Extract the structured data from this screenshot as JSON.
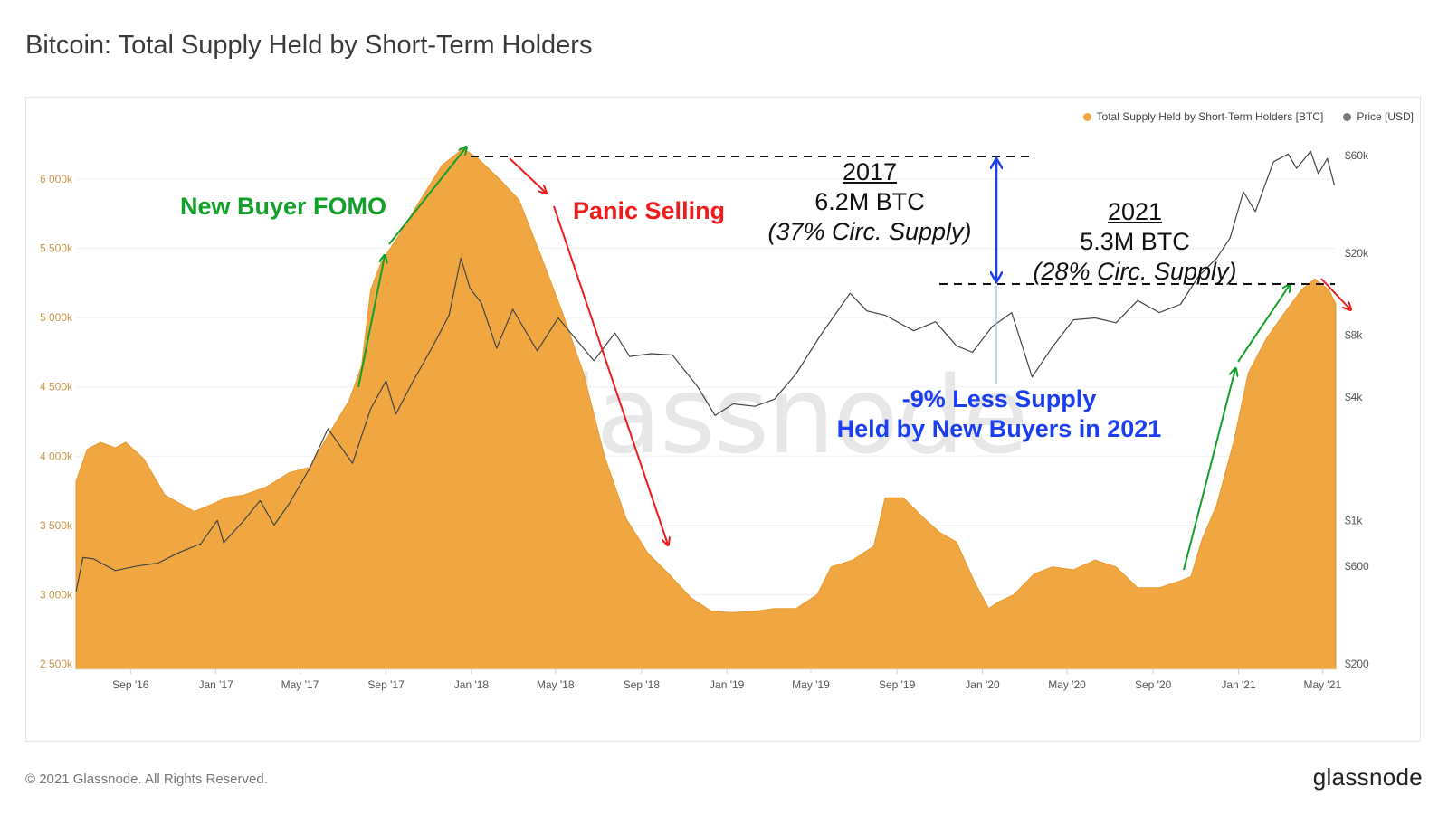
{
  "title": "Bitcoin: Total Supply Held by Short-Term Holders",
  "legend": {
    "supply_label": "Total Supply Held by Short-Term Holders [BTC]",
    "price_label": "Price [USD]"
  },
  "colors": {
    "supply": "#f0a742",
    "price": "#777777",
    "green": "#12a02a",
    "red": "#ee1c1c",
    "blue": "#1a3ef0"
  },
  "annotations": {
    "fomo": "New Buyer FOMO",
    "panic": "Panic Selling",
    "y2017": "2017",
    "btc2017": "6.2M BTC",
    "circ2017": "(37% Circ. Supply)",
    "y2021": "2021",
    "btc2021": "5.3M BTC",
    "circ2021": "(28% Circ. Supply)",
    "less_line1": "-9% Less Supply",
    "less_line2": "Held by New Buyers in 2021"
  },
  "watermark": "glassnode",
  "footer": {
    "copyright": "© 2021 Glassnode. All Rights Reserved.",
    "logo": "glassnode"
  },
  "chart_data": {
    "type": "area",
    "x_tick_labels": [
      "Sep '16",
      "Jan '17",
      "May '17",
      "Sep '17",
      "Jan '18",
      "May '18",
      "Sep '18",
      "Jan '19",
      "May '19",
      "Sep '19",
      "Jan '20",
      "May '20",
      "Sep '20",
      "Jan '21",
      "May '21"
    ],
    "x_range": [
      "2016-06-15",
      "2021-05-20"
    ],
    "y_left": {
      "ticks": [
        2500000,
        3000000,
        3500000,
        4000000,
        4500000,
        5000000,
        5500000,
        6000000
      ],
      "tick_labels": [
        "2 500k",
        "3 000k",
        "3 500k",
        "4 000k",
        "4 500k",
        "5 000k",
        "5 500k",
        "6 000k"
      ],
      "range": [
        2500000,
        6300000
      ]
    },
    "y_right": {
      "scale": "log",
      "ticks": [
        200,
        600,
        1000,
        4000,
        8000,
        20000,
        60000
      ],
      "tick_labels": [
        "$200",
        "$600",
        "$1k",
        "$4k",
        "$8k",
        "$20k",
        "$60k"
      ]
    },
    "grid": true,
    "legend_position": "top-right",
    "series": [
      {
        "name": "Total Supply Held by Short-Term Holders [BTC]",
        "axis": "left",
        "points": [
          [
            "2016-06-15",
            3820000
          ],
          [
            "2016-07-01",
            4050000
          ],
          [
            "2016-07-20",
            4100000
          ],
          [
            "2016-08-10",
            4060000
          ],
          [
            "2016-08-25",
            4100000
          ],
          [
            "2016-09-20",
            3980000
          ],
          [
            "2016-10-20",
            3720000
          ],
          [
            "2016-12-01",
            3600000
          ],
          [
            "2016-12-25",
            3650000
          ],
          [
            "2017-01-15",
            3700000
          ],
          [
            "2017-02-10",
            3720000
          ],
          [
            "2017-03-15",
            3780000
          ],
          [
            "2017-04-15",
            3880000
          ],
          [
            "2017-05-15",
            3920000
          ],
          [
            "2017-06-10",
            4150000
          ],
          [
            "2017-07-10",
            4400000
          ],
          [
            "2017-07-28",
            4650000
          ],
          [
            "2017-08-10",
            5200000
          ],
          [
            "2017-08-25",
            5400000
          ],
          [
            "2017-09-20",
            5600000
          ],
          [
            "2017-10-20",
            5850000
          ],
          [
            "2017-11-20",
            6100000
          ],
          [
            "2017-12-20",
            6220000
          ],
          [
            "2018-01-10",
            6150000
          ],
          [
            "2018-02-10",
            6000000
          ],
          [
            "2018-03-10",
            5850000
          ],
          [
            "2018-04-10",
            5450000
          ],
          [
            "2018-05-10",
            5050000
          ],
          [
            "2018-06-10",
            4600000
          ],
          [
            "2018-07-10",
            4000000
          ],
          [
            "2018-08-10",
            3550000
          ],
          [
            "2018-09-10",
            3300000
          ],
          [
            "2018-10-10",
            3150000
          ],
          [
            "2018-11-10",
            2980000
          ],
          [
            "2018-12-10",
            2880000
          ],
          [
            "2019-01-10",
            2870000
          ],
          [
            "2019-02-10",
            2880000
          ],
          [
            "2019-03-10",
            2900000
          ],
          [
            "2019-04-10",
            2900000
          ],
          [
            "2019-05-10",
            3000000
          ],
          [
            "2019-05-30",
            3200000
          ],
          [
            "2019-06-30",
            3250000
          ],
          [
            "2019-07-30",
            3350000
          ],
          [
            "2019-08-15",
            3700000
          ],
          [
            "2019-09-10",
            3700000
          ],
          [
            "2019-10-10",
            3550000
          ],
          [
            "2019-11-01",
            3450000
          ],
          [
            "2019-11-25",
            3380000
          ],
          [
            "2019-12-20",
            3100000
          ],
          [
            "2020-01-10",
            2900000
          ],
          [
            "2020-01-25",
            2950000
          ],
          [
            "2020-02-15",
            3000000
          ],
          [
            "2020-03-15",
            3150000
          ],
          [
            "2020-04-10",
            3200000
          ],
          [
            "2020-05-10",
            3180000
          ],
          [
            "2020-06-10",
            3250000
          ],
          [
            "2020-07-10",
            3200000
          ],
          [
            "2020-08-10",
            3050000
          ],
          [
            "2020-09-10",
            3050000
          ],
          [
            "2020-10-10",
            3100000
          ],
          [
            "2020-10-25",
            3130000
          ],
          [
            "2020-11-10",
            3400000
          ],
          [
            "2020-12-01",
            3650000
          ],
          [
            "2020-12-25",
            4100000
          ],
          [
            "2021-01-15",
            4600000
          ],
          [
            "2021-02-10",
            4850000
          ],
          [
            "2021-03-10",
            5050000
          ],
          [
            "2021-04-01",
            5200000
          ],
          [
            "2021-04-20",
            5280000
          ],
          [
            "2021-05-10",
            5200000
          ],
          [
            "2021-05-20",
            5100000
          ]
        ]
      },
      {
        "name": "Price [USD]",
        "axis": "right",
        "points": [
          [
            "2016-06-15",
            450
          ],
          [
            "2016-06-25",
            660
          ],
          [
            "2016-07-10",
            650
          ],
          [
            "2016-08-10",
            570
          ],
          [
            "2016-09-10",
            600
          ],
          [
            "2016-10-10",
            620
          ],
          [
            "2016-11-10",
            700
          ],
          [
            "2016-12-10",
            770
          ],
          [
            "2017-01-03",
            1000
          ],
          [
            "2017-01-12",
            780
          ],
          [
            "2017-02-10",
            1000
          ],
          [
            "2017-03-05",
            1250
          ],
          [
            "2017-03-25",
            950
          ],
          [
            "2017-04-15",
            1200
          ],
          [
            "2017-05-15",
            1800
          ],
          [
            "2017-06-10",
            2800
          ],
          [
            "2017-07-15",
            1900
          ],
          [
            "2017-08-10",
            3500
          ],
          [
            "2017-09-01",
            4800
          ],
          [
            "2017-09-15",
            3300
          ],
          [
            "2017-10-10",
            4800
          ],
          [
            "2017-10-25",
            5900
          ],
          [
            "2017-11-10",
            7400
          ],
          [
            "2017-11-30",
            10000
          ],
          [
            "2017-12-17",
            19000
          ],
          [
            "2017-12-30",
            13500
          ],
          [
            "2018-01-15",
            11500
          ],
          [
            "2018-02-06",
            6900
          ],
          [
            "2018-03-01",
            10700
          ],
          [
            "2018-04-05",
            6700
          ],
          [
            "2018-05-05",
            9700
          ],
          [
            "2018-06-25",
            6000
          ],
          [
            "2018-07-25",
            8200
          ],
          [
            "2018-08-15",
            6300
          ],
          [
            "2018-09-15",
            6500
          ],
          [
            "2018-10-15",
            6400
          ],
          [
            "2018-11-20",
            4500
          ],
          [
            "2018-12-15",
            3250
          ],
          [
            "2019-01-10",
            3700
          ],
          [
            "2019-02-10",
            3600
          ],
          [
            "2019-03-10",
            3900
          ],
          [
            "2019-04-10",
            5200
          ],
          [
            "2019-05-15",
            8000
          ],
          [
            "2019-06-26",
            12800
          ],
          [
            "2019-07-20",
            10500
          ],
          [
            "2019-08-15",
            10000
          ],
          [
            "2019-09-25",
            8400
          ],
          [
            "2019-10-26",
            9300
          ],
          [
            "2019-11-25",
            7100
          ],
          [
            "2019-12-18",
            6600
          ],
          [
            "2020-01-15",
            8800
          ],
          [
            "2020-02-12",
            10300
          ],
          [
            "2020-03-12",
            5000
          ],
          [
            "2020-04-10",
            7000
          ],
          [
            "2020-05-10",
            9500
          ],
          [
            "2020-06-10",
            9700
          ],
          [
            "2020-07-10",
            9200
          ],
          [
            "2020-08-10",
            11800
          ],
          [
            "2020-09-10",
            10300
          ],
          [
            "2020-10-10",
            11300
          ],
          [
            "2020-11-05",
            15500
          ],
          [
            "2020-12-01",
            19000
          ],
          [
            "2020-12-20",
            23800
          ],
          [
            "2021-01-08",
            40000
          ],
          [
            "2021-01-25",
            32000
          ],
          [
            "2021-02-20",
            56000
          ],
          [
            "2021-03-13",
            61000
          ],
          [
            "2021-03-25",
            52000
          ],
          [
            "2021-04-14",
            63000
          ],
          [
            "2021-04-25",
            49000
          ],
          [
            "2021-05-08",
            58000
          ],
          [
            "2021-05-18",
            43000
          ]
        ]
      }
    ]
  }
}
